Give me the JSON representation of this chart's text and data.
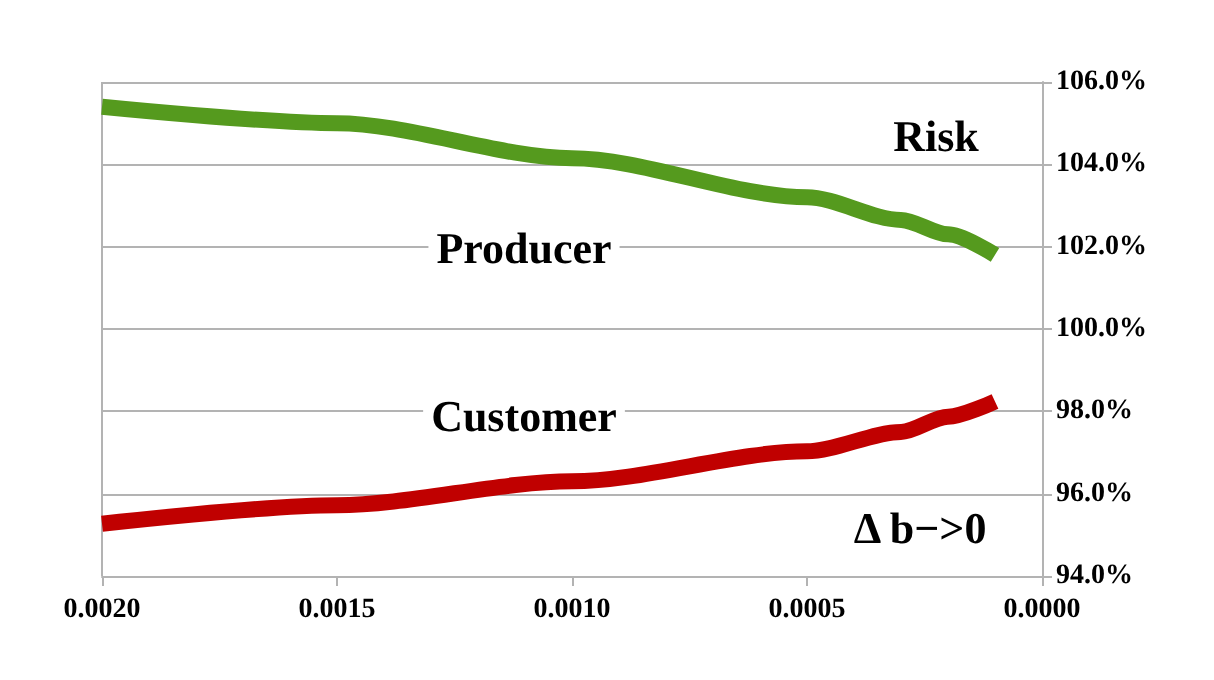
{
  "chart_data": {
    "type": "line",
    "x": [
      0.002,
      0.0015,
      0.001,
      0.0005,
      0.0003,
      0.0002,
      0.0001
    ],
    "series": [
      {
        "name": "Producer",
        "color": "#559a1e",
        "values": [
          105.4,
          105.0,
          104.15,
          103.2,
          102.65,
          102.3,
          101.8
        ]
      },
      {
        "name": "Customer",
        "color": "#c00000",
        "values": [
          95.27,
          95.72,
          96.3,
          97.03,
          97.5,
          97.87,
          98.24
        ]
      }
    ],
    "annotations": [
      "Risk",
      "Δ b−>0"
    ],
    "xlim": [
      0.002,
      0
    ],
    "xticks": [
      {
        "value": 0.002,
        "label": "0.0020"
      },
      {
        "value": 0.0015,
        "label": "0.0015"
      },
      {
        "value": 0.001,
        "label": "0.0010"
      },
      {
        "value": 0.0005,
        "label": "0.0005"
      },
      {
        "value": 0,
        "label": "0.0000"
      }
    ],
    "ylim": [
      94,
      106
    ],
    "yticks": [
      {
        "value": 94,
        "label": "94.0%"
      },
      {
        "value": 96,
        "label": "96.0%"
      },
      {
        "value": 98,
        "label": "98.0%"
      },
      {
        "value": 100,
        "label": "100.0%"
      },
      {
        "value": 102,
        "label": "102.0%"
      },
      {
        "value": 104,
        "label": "104.0%"
      },
      {
        "value": 106,
        "label": "106.0%"
      }
    ],
    "grid": "y",
    "legend": false,
    "marker": "none",
    "line_style": "solid"
  }
}
